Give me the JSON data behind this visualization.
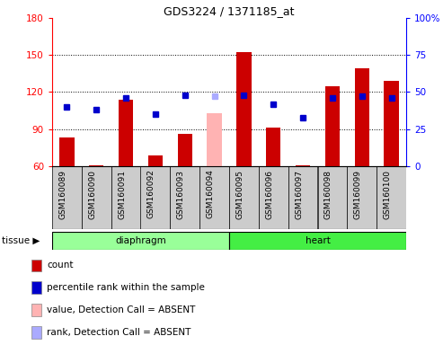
{
  "title": "GDS3224 / 1371185_at",
  "samples": [
    "GSM160089",
    "GSM160090",
    "GSM160091",
    "GSM160092",
    "GSM160093",
    "GSM160094",
    "GSM160095",
    "GSM160096",
    "GSM160097",
    "GSM160098",
    "GSM160099",
    "GSM160100"
  ],
  "bar_heights": [
    83,
    61,
    114,
    69,
    86,
    null,
    152,
    91,
    61,
    125,
    139,
    129
  ],
  "absent_bar_height": [
    null,
    null,
    null,
    null,
    null,
    103,
    null,
    null,
    null,
    null,
    null,
    null
  ],
  "rank_dots_pct": [
    40,
    38,
    46,
    35,
    48,
    null,
    48,
    42,
    33,
    46,
    47,
    46
  ],
  "absent_rank_dot_pct": [
    null,
    null,
    null,
    null,
    null,
    47,
    null,
    null,
    null,
    null,
    null,
    null
  ],
  "bar_color": "#cc0000",
  "absent_bar_color": "#ffb3b3",
  "rank_dot_color": "#0000cc",
  "absent_rank_dot_color": "#aaaaff",
  "ylim_left": [
    60,
    180
  ],
  "ylim_right": [
    0,
    100
  ],
  "yticks_left": [
    60,
    90,
    120,
    150,
    180
  ],
  "yticks_right": [
    0,
    25,
    50,
    75,
    100
  ],
  "tissue_groups": [
    {
      "label": "diaphragm",
      "start": 0,
      "end": 6,
      "color": "#99ff99"
    },
    {
      "label": "heart",
      "start": 6,
      "end": 12,
      "color": "#44ee44"
    }
  ],
  "legend_items": [
    {
      "label": "count",
      "color": "#cc0000"
    },
    {
      "label": "percentile rank within the sample",
      "color": "#0000cc"
    },
    {
      "label": "value, Detection Call = ABSENT",
      "color": "#ffb3b3"
    },
    {
      "label": "rank, Detection Call = ABSENT",
      "color": "#aaaaff"
    }
  ],
  "bar_width": 0.5,
  "sample_box_color": "#cccccc"
}
